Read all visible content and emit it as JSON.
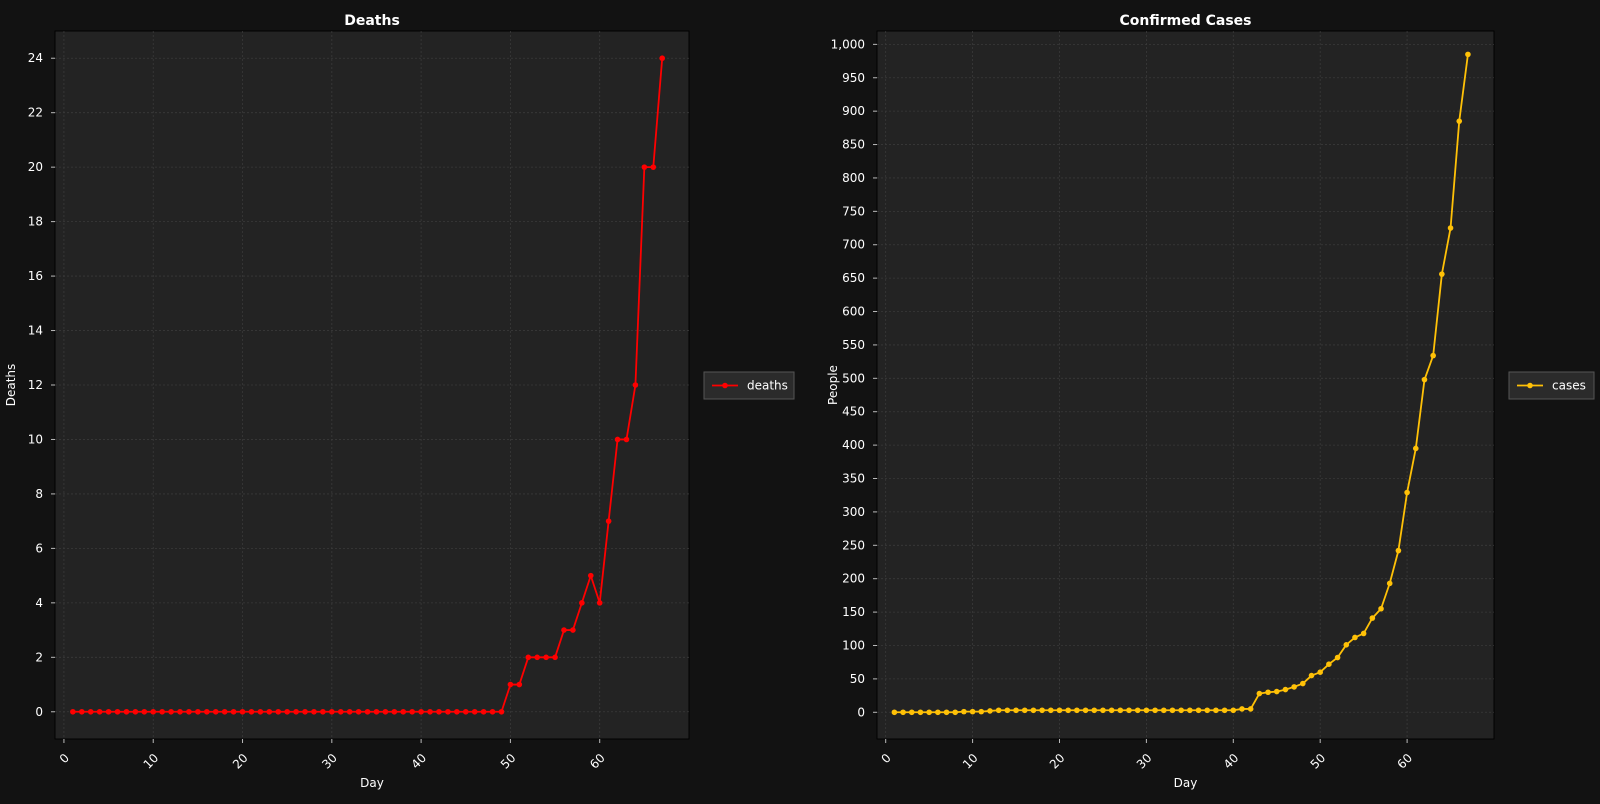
{
  "chart_data": [
    {
      "type": "line",
      "title": "Deaths",
      "xlabel": "Day",
      "ylabel": "Deaths",
      "xlim": [
        -1,
        70
      ],
      "ylim": [
        -1,
        25
      ],
      "xticks": [
        0,
        10,
        20,
        30,
        40,
        50,
        60
      ],
      "yticks": [
        0,
        2,
        4,
        6,
        8,
        10,
        12,
        14,
        16,
        18,
        20,
        22,
        24
      ],
      "grid": true,
      "legend_position": "right",
      "x": [
        1,
        2,
        3,
        4,
        5,
        6,
        7,
        8,
        9,
        10,
        11,
        12,
        13,
        14,
        15,
        16,
        17,
        18,
        19,
        20,
        21,
        22,
        23,
        24,
        25,
        26,
        27,
        28,
        29,
        30,
        31,
        32,
        33,
        34,
        35,
        36,
        37,
        38,
        39,
        40,
        41,
        42,
        43,
        44,
        45,
        46,
        47,
        48,
        49,
        50,
        51,
        52,
        53,
        54,
        55,
        56,
        57,
        58,
        59,
        60,
        61,
        62,
        63,
        64,
        65,
        66,
        67
      ],
      "series": [
        {
          "name": "deaths",
          "color": "#ff0000",
          "values": [
            0,
            0,
            0,
            0,
            0,
            0,
            0,
            0,
            0,
            0,
            0,
            0,
            0,
            0,
            0,
            0,
            0,
            0,
            0,
            0,
            0,
            0,
            0,
            0,
            0,
            0,
            0,
            0,
            0,
            0,
            0,
            0,
            0,
            0,
            0,
            0,
            0,
            0,
            0,
            0,
            0,
            0,
            0,
            0,
            0,
            0,
            0,
            0,
            0,
            1,
            1,
            2,
            2,
            2,
            2,
            3,
            3,
            4,
            5,
            4,
            7,
            10,
            10,
            12,
            20,
            20,
            24
          ]
        }
      ]
    },
    {
      "type": "line",
      "title": "Confirmed Cases",
      "xlabel": "Day",
      "ylabel": "People",
      "xlim": [
        -1,
        70
      ],
      "ylim": [
        -40,
        1020
      ],
      "xticks": [
        0,
        10,
        20,
        30,
        40,
        50,
        60
      ],
      "yticks": [
        0,
        50,
        100,
        150,
        200,
        250,
        300,
        350,
        400,
        450,
        500,
        550,
        600,
        650,
        700,
        750,
        800,
        850,
        900,
        950,
        1000
      ],
      "ytick_labels": [
        "0",
        "50",
        "100",
        "150",
        "200",
        "250",
        "300",
        "350",
        "400",
        "450",
        "500",
        "550",
        "600",
        "650",
        "700",
        "750",
        "800",
        "850",
        "900",
        "950",
        "1,000"
      ],
      "grid": true,
      "legend_position": "right",
      "x": [
        1,
        2,
        3,
        4,
        5,
        6,
        7,
        8,
        9,
        10,
        11,
        12,
        13,
        14,
        15,
        16,
        17,
        18,
        19,
        20,
        21,
        22,
        23,
        24,
        25,
        26,
        27,
        28,
        29,
        30,
        31,
        32,
        33,
        34,
        35,
        36,
        37,
        38,
        39,
        40,
        41,
        42,
        43,
        44,
        45,
        46,
        47,
        48,
        49,
        50,
        51,
        52,
        53,
        54,
        55,
        56,
        57,
        58,
        59,
        60,
        61,
        62,
        63,
        64,
        65,
        66,
        67
      ],
      "series": [
        {
          "name": "cases",
          "color": "#ffc107",
          "values": [
            0,
            0,
            0,
            0,
            0,
            0,
            0,
            0,
            1,
            1,
            1,
            2,
            3,
            3,
            3,
            3,
            3,
            3,
            3,
            3,
            3,
            3,
            3,
            3,
            3,
            3,
            3,
            3,
            3,
            3,
            3,
            3,
            3,
            3,
            3,
            3,
            3,
            3,
            3,
            3,
            5,
            5,
            28,
            30,
            31,
            34,
            38,
            43,
            55,
            60,
            72,
            82,
            101,
            112,
            118,
            141,
            155,
            193,
            242,
            329,
            395,
            498,
            534,
            656,
            725,
            885,
            985
          ]
        }
      ]
    }
  ],
  "colors": {
    "page_background": "#121212",
    "plot_background": "#232323",
    "grid": "#3a3a3a",
    "legend_background": "#2b2b2b"
  }
}
